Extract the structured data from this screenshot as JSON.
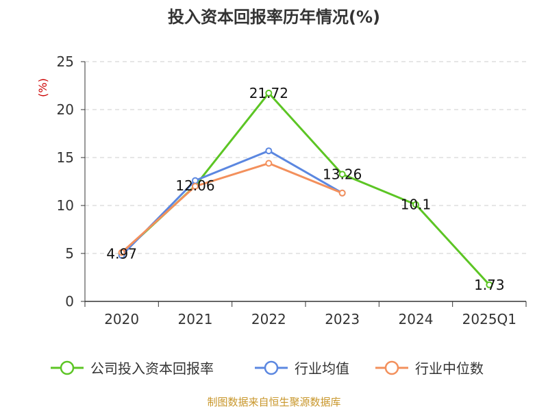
{
  "chart_data": {
    "type": "line",
    "title": "投入资本回报率历年情况(%)",
    "ylabel": "(%)",
    "xlabel": "",
    "categories": [
      "2020",
      "2021",
      "2022",
      "2023",
      "2024",
      "2025Q1"
    ],
    "ylim": [
      0,
      25
    ],
    "yticks": [
      0,
      5,
      10,
      15,
      20,
      25
    ],
    "grid": true,
    "legend_position": "bottom",
    "series": [
      {
        "name": "公司投入资本回报率",
        "color": "#5cc524",
        "values": [
          4.97,
          12.06,
          21.72,
          13.26,
          10.1,
          1.73
        ],
        "labels": [
          "4.97",
          "12.06",
          "21.72",
          "13.26",
          "10.1",
          "1.73"
        ]
      },
      {
        "name": "行业均值",
        "color": "#5b87e0",
        "values": [
          4.8,
          12.6,
          15.7,
          11.3,
          null,
          null
        ]
      },
      {
        "name": "行业中位数",
        "color": "#f3905c",
        "values": [
          5.1,
          12.0,
          14.4,
          11.3,
          null,
          null
        ]
      }
    ],
    "source": "制图数据来自恒生聚源数据库"
  }
}
